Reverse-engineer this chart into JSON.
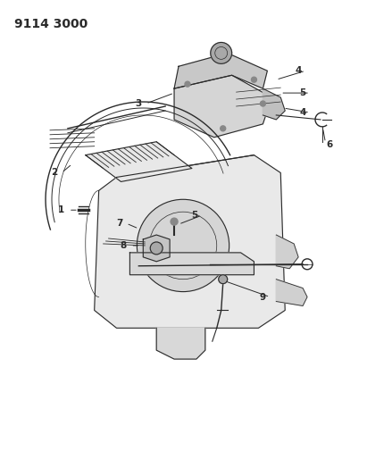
{
  "title": "9114 3000",
  "title_fontsize": 10,
  "title_fontweight": "bold",
  "background_color": "#ffffff",
  "fig_width": 4.11,
  "fig_height": 5.33,
  "dpi": 100,
  "line_color": "#2a2a2a",
  "light_gray": "#c8c8c8",
  "mid_gray": "#a8a8a8",
  "dark_gray": "#888888"
}
